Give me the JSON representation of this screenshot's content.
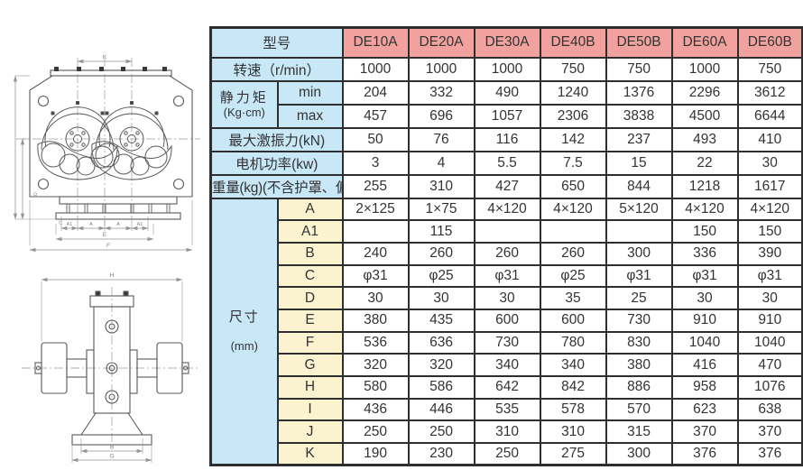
{
  "colors": {
    "header_pink": "#f1a29f",
    "label_blue": "#c8e7f7",
    "dim_cream": "#fbf2d0",
    "border": "#2e2e2e",
    "text": "#333333"
  },
  "drawings": {
    "front_view": {
      "labels": {
        "k": "K",
        "a1_left": "A1",
        "a_left": "A",
        "a_right": "A",
        "a1_right": "A1",
        "e": "E",
        "f": "F",
        "c": "C",
        "d": "D"
      }
    },
    "side_view": {
      "labels": {
        "h": "H",
        "b": "B",
        "g": "G"
      }
    }
  },
  "table": {
    "header": {
      "label": "型号",
      "models": [
        "DE10A",
        "DE20A",
        "DE30A",
        "DE40B",
        "DE50B",
        "DE60A",
        "DE60B"
      ]
    },
    "rows": [
      {
        "type": "simple",
        "label": "转速（r/min）",
        "values": [
          "1000",
          "1000",
          "1000",
          "750",
          "750",
          "1000",
          "750"
        ]
      },
      {
        "type": "group",
        "label": "静力矩",
        "label2": "(Kg·cm)",
        "sub_style": "blue",
        "subrows": [
          {
            "sublabel": "min",
            "values": [
              "204",
              "332",
              "490",
              "1240",
              "1376",
              "2296",
              "3612"
            ]
          },
          {
            "sublabel": "max",
            "values": [
              "457",
              "696",
              "1057",
              "2306",
              "3838",
              "4500",
              "6644"
            ]
          }
        ]
      },
      {
        "type": "simple",
        "label": "最大激振力(kN)",
        "values": [
          "50",
          "76",
          "116",
          "142",
          "237",
          "493",
          "410"
        ]
      },
      {
        "type": "simple",
        "label": "电机功率(kw)",
        "values": [
          "3",
          "4",
          "5.5",
          "7.5",
          "15",
          "22",
          "30"
        ]
      },
      {
        "type": "simple",
        "label": "重量(kg)(不含护罩、偏心块)",
        "small": true,
        "values": [
          "255",
          "310",
          "427",
          "650",
          "844",
          "1218",
          "1617"
        ]
      },
      {
        "type": "group",
        "label": "尺寸",
        "label2": "(mm)",
        "sub_style": "cream",
        "subrows": [
          {
            "sublabel": "A",
            "values": [
              "2×125",
              "1×75",
              "4×120",
              "4×120",
              "5×120",
              "4×120",
              "4×120"
            ]
          },
          {
            "sublabel": "A1",
            "values": [
              "",
              "115",
              "",
              "",
              "",
              "150",
              "150"
            ]
          },
          {
            "sublabel": "B",
            "values": [
              "240",
              "260",
              "260",
              "260",
              "300",
              "336",
              "390"
            ]
          },
          {
            "sublabel": "C",
            "values": [
              "φ31",
              "φ25",
              "φ31",
              "φ25",
              "φ31",
              "φ31",
              "φ31"
            ]
          },
          {
            "sublabel": "D",
            "values": [
              "30",
              "30",
              "30",
              "35",
              "25",
              "30",
              "30"
            ]
          },
          {
            "sublabel": "E",
            "values": [
              "380",
              "435",
              "600",
              "600",
              "730",
              "910",
              "910"
            ]
          },
          {
            "sublabel": "F",
            "values": [
              "536",
              "636",
              "730",
              "780",
              "830",
              "1040",
              "1040"
            ]
          },
          {
            "sublabel": "G",
            "values": [
              "320",
              "320",
              "340",
              "340",
              "380",
              "416",
              "470"
            ]
          },
          {
            "sublabel": "H",
            "values": [
              "580",
              "586",
              "642",
              "842",
              "886",
              "958",
              "1076"
            ]
          },
          {
            "sublabel": "I",
            "values": [
              "436",
              "446",
              "535",
              "578",
              "570",
              "623",
              "638"
            ]
          },
          {
            "sublabel": "J",
            "values": [
              "250",
              "250",
              "310",
              "310",
              "315",
              "370",
              "370"
            ]
          },
          {
            "sublabel": "K",
            "values": [
              "190",
              "230",
              "250",
              "275",
              "300",
              "376",
              "376"
            ]
          }
        ]
      }
    ]
  }
}
